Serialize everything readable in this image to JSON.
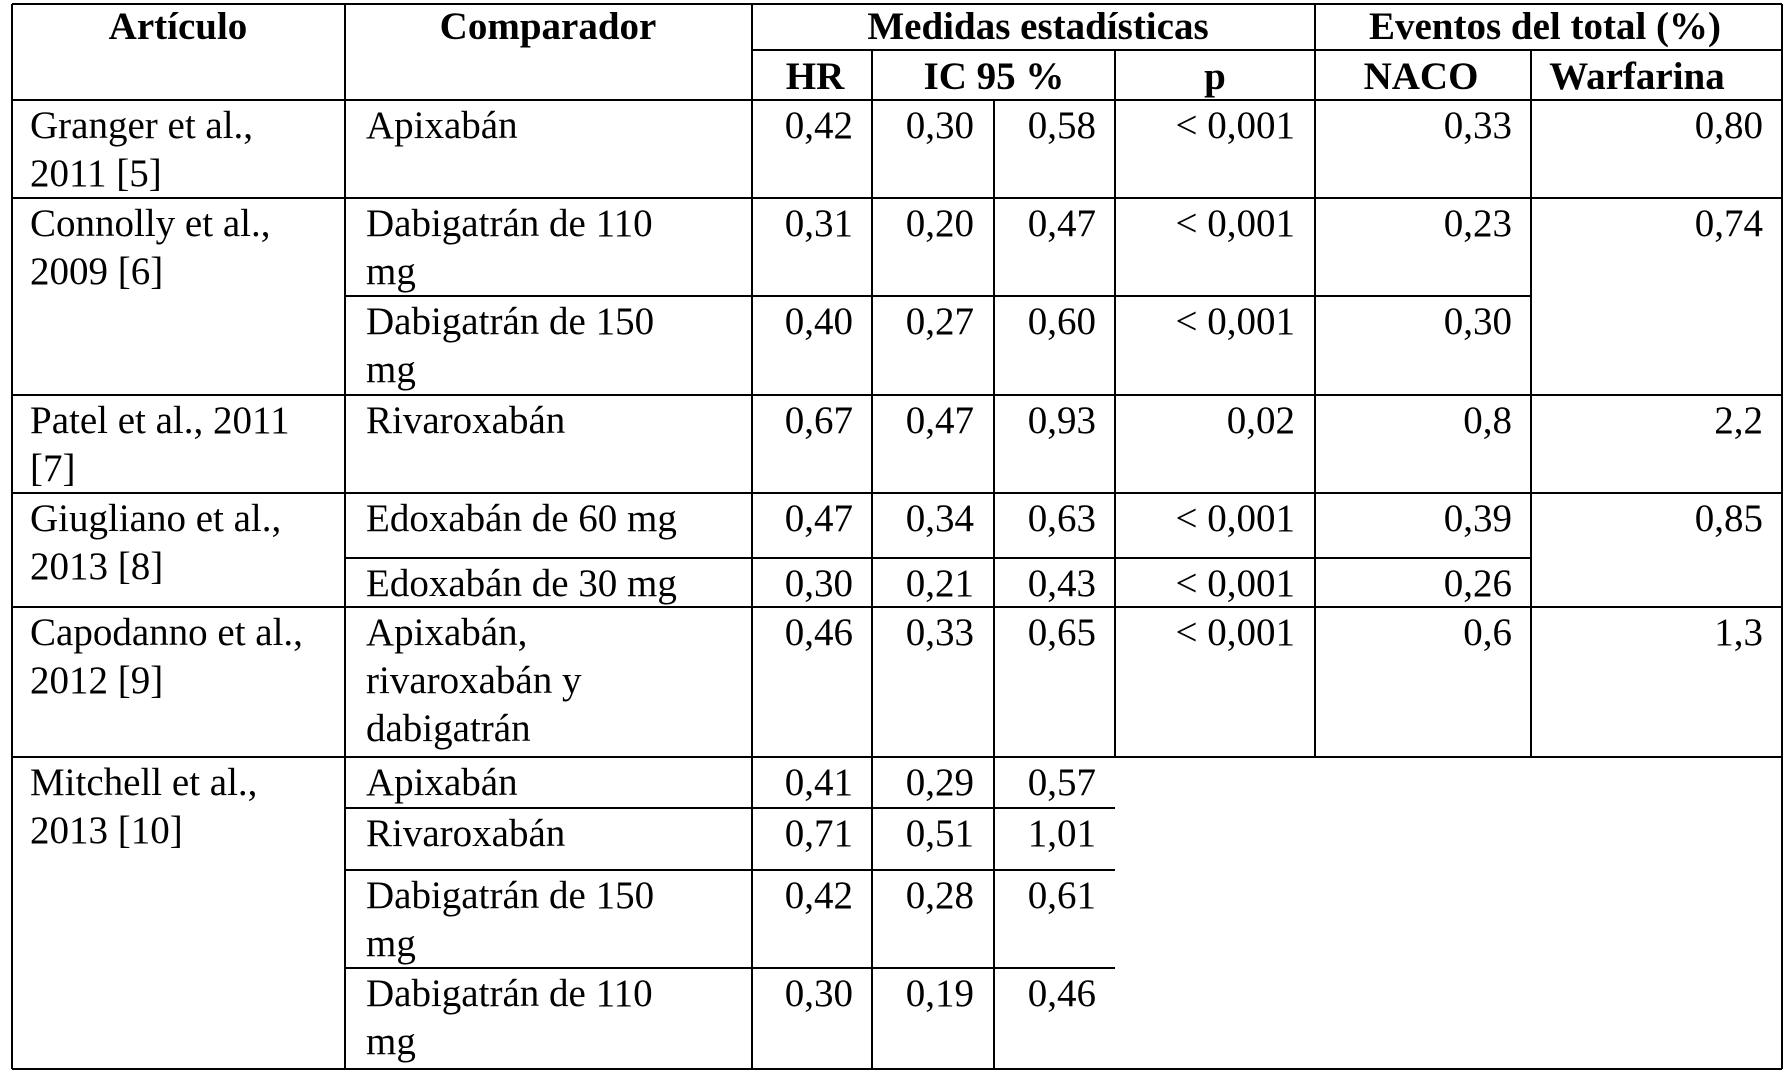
{
  "header": {
    "articulo": "Artículo",
    "comparador": "Comparador",
    "medidas": "Medidas estadísticas",
    "eventos": "Eventos del total (%)",
    "hr": "HR",
    "ic": "IC 95 %",
    "p": "p",
    "naco": "NACO",
    "warfarina": "Warfarina"
  },
  "rows": [
    {
      "article": [
        "Granger et al.,",
        "2011 [5]"
      ],
      "comp": [
        "Apixabán"
      ],
      "hr": "0,42",
      "lo": "0,30",
      "hi": "0,58",
      "p": "< 0,001",
      "naco": "0,33",
      "warf": "0,80"
    },
    {
      "article": [
        "Connolly et al.,",
        "2009 [6]"
      ],
      "comp": [
        "Dabigatrán de 110",
        "mg"
      ],
      "hr": "0,31",
      "lo": "0,20",
      "hi": "0,47",
      "p": "< 0,001",
      "naco": "0,23",
      "warf": "0,74"
    },
    {
      "article": [],
      "comp": [
        "Dabigatrán de 150",
        "mg"
      ],
      "hr": "0,40",
      "lo": "0,27",
      "hi": "0,60",
      "p": "< 0,001",
      "naco": "0,30",
      "warf": ""
    },
    {
      "article": [
        "Patel et al., 2011",
        "[7]"
      ],
      "comp": [
        "Rivaroxabán"
      ],
      "hr": "0,67",
      "lo": "0,47",
      "hi": "0,93",
      "p": "0,02",
      "naco": "0,8",
      "warf": "2,2"
    },
    {
      "article": [
        "Giugliano et al.,",
        "2013 [8]"
      ],
      "comp": [
        "Edoxabán de 60 mg"
      ],
      "hr": "0,47",
      "lo": "0,34",
      "hi": "0,63",
      "p": "< 0,001",
      "naco": "0,39",
      "warf": "0,85"
    },
    {
      "article": [],
      "comp": [
        "Edoxabán de 30 mg"
      ],
      "hr": "0,30",
      "lo": "0,21",
      "hi": "0,43",
      "p": "< 0,001",
      "naco": "0,26",
      "warf": ""
    },
    {
      "article": [
        "Capodanno et al.,",
        "2012 [9]"
      ],
      "comp": [
        "Apixabán,",
        "rivaroxabán y",
        "dabigatrán"
      ],
      "hr": "0,46",
      "lo": "0,33",
      "hi": "0,65",
      "p": "< 0,001",
      "naco": "0,6",
      "warf": "1,3"
    },
    {
      "article": [
        "Mitchell et al.,",
        "2013 [10]"
      ],
      "comp": [
        "Apixabán"
      ],
      "hr": "0,41",
      "lo": "0,29",
      "hi": "0,57",
      "p": "",
      "naco": "",
      "warf": ""
    },
    {
      "article": [],
      "comp": [
        "Rivaroxabán"
      ],
      "hr": "0,71",
      "lo": "0,51",
      "hi": "1,01",
      "p": "",
      "naco": "",
      "warf": ""
    },
    {
      "article": [],
      "comp": [
        "Dabigatrán de 150",
        "mg"
      ],
      "hr": "0,42",
      "lo": "0,28",
      "hi": "0,61",
      "p": "",
      "naco": "",
      "warf": ""
    },
    {
      "article": [],
      "comp": [
        "Dabigatrán de 110",
        "mg"
      ],
      "hr": "0,30",
      "lo": "0,19",
      "hi": "0,46",
      "p": "",
      "naco": "",
      "warf": ""
    }
  ]
}
